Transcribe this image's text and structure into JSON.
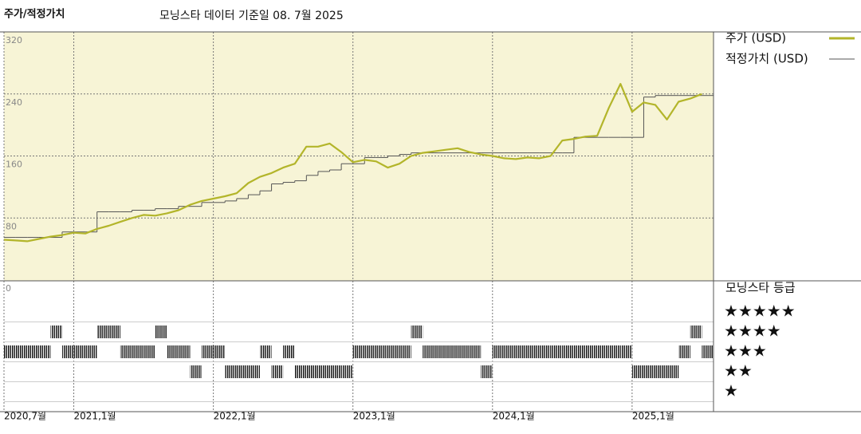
{
  "chart_data": {
    "type": "line",
    "title": "주가/적정가치",
    "subtitle": "모닝스타 데이터 기준일 08. 7월 2025",
    "x": [
      "2020-07",
      "2020-08",
      "2020-09",
      "2020-10",
      "2020-11",
      "2020-12",
      "2021-01",
      "2021-02",
      "2021-03",
      "2021-04",
      "2021-05",
      "2021-06",
      "2021-07",
      "2021-08",
      "2021-09",
      "2021-10",
      "2021-11",
      "2021-12",
      "2022-01",
      "2022-02",
      "2022-03",
      "2022-04",
      "2022-05",
      "2022-06",
      "2022-07",
      "2022-08",
      "2022-09",
      "2022-10",
      "2022-11",
      "2022-12",
      "2023-01",
      "2023-02",
      "2023-03",
      "2023-04",
      "2023-05",
      "2023-06",
      "2023-07",
      "2023-08",
      "2023-09",
      "2023-10",
      "2023-11",
      "2023-12",
      "2024-01",
      "2024-02",
      "2024-03",
      "2024-04",
      "2024-05",
      "2024-06",
      "2024-07",
      "2024-08",
      "2024-09",
      "2024-10",
      "2024-11",
      "2024-12",
      "2025-01",
      "2025-02",
      "2025-03",
      "2025-04",
      "2025-05",
      "2025-06",
      "2025-07"
    ],
    "series": [
      {
        "name": "주가 (USD)",
        "color": "#b3b52a",
        "values": [
          52,
          51,
          50,
          53,
          56,
          58,
          61,
          60,
          66,
          70,
          75,
          80,
          84,
          83,
          86,
          90,
          97,
          102,
          105,
          108,
          112,
          125,
          133,
          138,
          145,
          150,
          172,
          172,
          176,
          165,
          152,
          155,
          153,
          145,
          150,
          160,
          164,
          166,
          168,
          170,
          165,
          162,
          160,
          157,
          156,
          158,
          157,
          160,
          180,
          182,
          185,
          186,
          222,
          253,
          217,
          229,
          226,
          207,
          230,
          234,
          240
        ]
      },
      {
        "name": "적정가치 (USD)",
        "color": "#555555",
        "step": true,
        "values": [
          55,
          55,
          55,
          55,
          55,
          62,
          62,
          62,
          88,
          88,
          88,
          90,
          90,
          92,
          92,
          95,
          95,
          100,
          100,
          102,
          105,
          110,
          115,
          124,
          126,
          128,
          135,
          140,
          142,
          150,
          150,
          158,
          158,
          160,
          162,
          164,
          164,
          164,
          164,
          164,
          164,
          164,
          164,
          164,
          164,
          164,
          164,
          164,
          164,
          184,
          184,
          184,
          184,
          184,
          184,
          236,
          238,
          238,
          238,
          238,
          238
        ]
      }
    ],
    "xlim": [
      "2020-07",
      "2025-08"
    ],
    "xticks": [
      {
        "value": "2020-07",
        "label": "2020,7월"
      },
      {
        "value": "2021-01",
        "label": "2021,1월"
      },
      {
        "value": "2022-01",
        "label": "2022,1월"
      },
      {
        "value": "2023-01",
        "label": "2023,1월"
      },
      {
        "value": "2024-01",
        "label": "2024,1월"
      },
      {
        "value": "2025-01",
        "label": "2025,1월"
      }
    ],
    "ylim": [
      0,
      320
    ],
    "yticks": [
      0,
      80,
      160,
      240,
      320
    ],
    "grid": true,
    "background": "#f7f4d6",
    "ratings": {
      "title": "모닝스타 등급",
      "rows": [
        {
          "stars": 5,
          "label": "★★★★★"
        },
        {
          "stars": 4,
          "label": "★★★★"
        },
        {
          "stars": 3,
          "label": "★★★"
        },
        {
          "stars": 2,
          "label": "★★"
        },
        {
          "stars": 1,
          "label": "★"
        }
      ],
      "values": [
        3,
        3,
        3,
        3,
        4,
        3,
        3,
        3,
        4,
        4,
        3,
        3,
        3,
        4,
        3,
        3,
        2,
        3,
        3,
        2,
        2,
        2,
        3,
        2,
        3,
        2,
        2,
        2,
        2,
        2,
        3,
        3,
        3,
        3,
        3,
        4,
        3,
        3,
        3,
        3,
        3,
        2,
        3,
        3,
        3,
        3,
        3,
        3,
        3,
        3,
        3,
        3,
        3,
        3,
        2,
        2,
        2,
        2,
        3,
        4,
        3
      ]
    }
  }
}
